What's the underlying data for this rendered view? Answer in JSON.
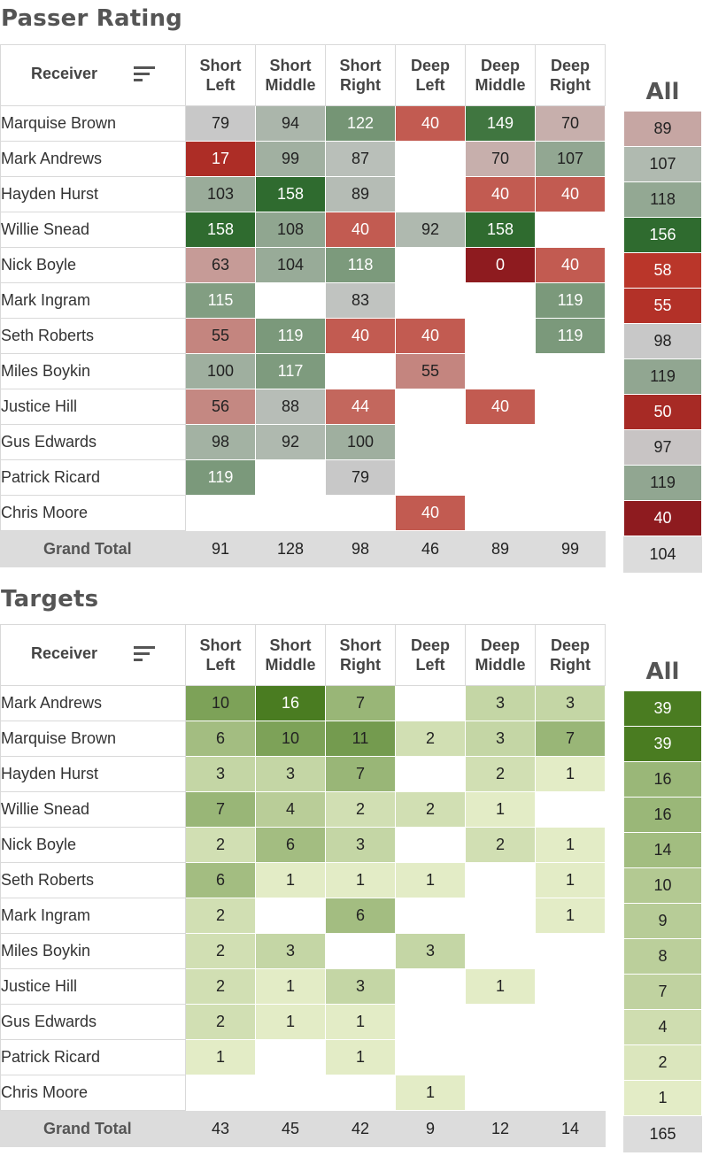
{
  "chart_data": [
    {
      "type": "heatmap",
      "title": "Passer Rating",
      "row_header": "Receiver",
      "columns": [
        "Short Left",
        "Short Middle",
        "Short Right",
        "Deep Left",
        "Deep Middle",
        "Deep Right"
      ],
      "all_label": "All",
      "rows": [
        {
          "name": "Marquise Brown",
          "values": [
            79,
            94,
            122,
            40,
            149,
            70
          ],
          "all": 89
        },
        {
          "name": "Mark Andrews",
          "values": [
            17,
            99,
            87,
            null,
            70,
            107
          ],
          "all": 107
        },
        {
          "name": "Hayden Hurst",
          "values": [
            103,
            158,
            89,
            null,
            40,
            40
          ],
          "all": 118
        },
        {
          "name": "Willie Snead",
          "values": [
            158,
            108,
            40,
            92,
            158,
            null
          ],
          "all": 156
        },
        {
          "name": "Nick Boyle",
          "values": [
            63,
            104,
            118,
            null,
            0,
            40
          ],
          "all": 58
        },
        {
          "name": "Mark Ingram",
          "values": [
            115,
            null,
            83,
            null,
            null,
            119
          ],
          "all": 55
        },
        {
          "name": "Seth Roberts",
          "values": [
            55,
            119,
            40,
            40,
            null,
            119
          ],
          "all": 98
        },
        {
          "name": "Miles Boykin",
          "values": [
            100,
            117,
            null,
            55,
            null,
            null
          ],
          "all": 119
        },
        {
          "name": "Justice Hill",
          "values": [
            56,
            88,
            44,
            null,
            40,
            null
          ],
          "all": 50
        },
        {
          "name": "Gus Edwards",
          "values": [
            98,
            92,
            100,
            null,
            null,
            null
          ],
          "all": 97
        },
        {
          "name": "Patrick Ricard",
          "values": [
            119,
            null,
            79,
            null,
            null,
            null
          ],
          "all": 119
        },
        {
          "name": "Chris Moore",
          "values": [
            null,
            null,
            null,
            40,
            null,
            null
          ],
          "all": 40
        }
      ],
      "total": {
        "label": "Grand Total",
        "values": [
          91,
          128,
          98,
          46,
          89,
          99
        ],
        "all": 104
      },
      "color_scale": {
        "low": "#c0392b",
        "mid": "#c8c8c8",
        "high": "#2e7d32"
      }
    },
    {
      "type": "heatmap",
      "title": "Targets",
      "row_header": "Receiver",
      "columns": [
        "Short Left",
        "Short Middle",
        "Short Right",
        "Deep Left",
        "Deep Middle",
        "Deep Right"
      ],
      "all_label": "All",
      "rows": [
        {
          "name": "Mark Andrews",
          "values": [
            10,
            16,
            7,
            null,
            3,
            3
          ],
          "all": 39
        },
        {
          "name": "Marquise Brown",
          "values": [
            6,
            10,
            11,
            2,
            3,
            7
          ],
          "all": 39
        },
        {
          "name": "Hayden Hurst",
          "values": [
            3,
            3,
            7,
            null,
            2,
            1
          ],
          "all": 16
        },
        {
          "name": "Willie Snead",
          "values": [
            7,
            4,
            2,
            2,
            1,
            null
          ],
          "all": 16
        },
        {
          "name": "Nick Boyle",
          "values": [
            2,
            6,
            3,
            null,
            2,
            1
          ],
          "all": 14
        },
        {
          "name": "Seth Roberts",
          "values": [
            6,
            1,
            1,
            1,
            null,
            1
          ],
          "all": 10
        },
        {
          "name": "Mark Ingram",
          "values": [
            2,
            null,
            6,
            null,
            null,
            1
          ],
          "all": 9
        },
        {
          "name": "Miles Boykin",
          "values": [
            2,
            3,
            null,
            3,
            null,
            null
          ],
          "all": 8
        },
        {
          "name": "Justice Hill",
          "values": [
            2,
            1,
            3,
            null,
            1,
            null
          ],
          "all": 7
        },
        {
          "name": "Gus Edwards",
          "values": [
            2,
            1,
            1,
            null,
            null,
            null
          ],
          "all": 4
        },
        {
          "name": "Patrick Ricard",
          "values": [
            1,
            null,
            1,
            null,
            null,
            null
          ],
          "all": 2
        },
        {
          "name": "Chris Moore",
          "values": [
            null,
            null,
            null,
            1,
            null,
            null
          ],
          "all": 1
        }
      ],
      "total": {
        "label": "Grand Total",
        "values": [
          43,
          45,
          42,
          9,
          12,
          14
        ],
        "all": 165
      },
      "color_scale": {
        "low": "#e3ecc6",
        "high": "#4a7c21"
      }
    }
  ]
}
